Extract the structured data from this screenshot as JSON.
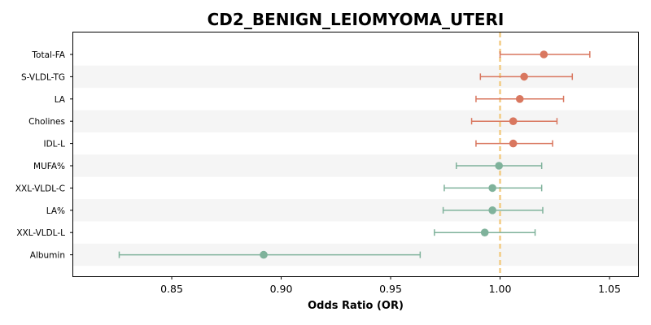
{
  "chart_data": {
    "type": "forest",
    "title": "CD2_BENIGN_LEIOMYOMA_UTERI",
    "xlabel": "Odds Ratio (OR)",
    "ylabel": "",
    "xlim": [
      0.805,
      1.063
    ],
    "xticks": [
      0.85,
      0.9,
      0.95,
      1.0,
      1.05
    ],
    "xtick_labels": [
      "0.85",
      "0.90",
      "0.95",
      "1.00",
      "1.05"
    ],
    "reference_line": 1.0,
    "grid": false,
    "row_banding": true,
    "colors": {
      "positive": "#d9775f",
      "negative": "#7fb29b",
      "reference": "#f2cc85",
      "band": "#f5f5f5"
    },
    "rows": [
      {
        "label": "Total-FA",
        "or": 1.02,
        "lo": 1.0,
        "hi": 1.041,
        "group": "positive"
      },
      {
        "label": "S-VLDL-TG",
        "or": 1.011,
        "lo": 0.991,
        "hi": 1.033,
        "group": "positive"
      },
      {
        "label": "LA",
        "or": 1.009,
        "lo": 0.989,
        "hi": 1.029,
        "group": "positive"
      },
      {
        "label": "Cholines",
        "or": 1.006,
        "lo": 0.987,
        "hi": 1.026,
        "group": "positive"
      },
      {
        "label": "IDL-L",
        "or": 1.006,
        "lo": 0.989,
        "hi": 1.024,
        "group": "positive"
      },
      {
        "label": "MUFA%",
        "or": 0.9995,
        "lo": 0.98,
        "hi": 1.019,
        "group": "negative"
      },
      {
        "label": "XXL-VLDL-C",
        "or": 0.9965,
        "lo": 0.9745,
        "hi": 1.019,
        "group": "negative"
      },
      {
        "label": "LA%",
        "or": 0.9965,
        "lo": 0.974,
        "hi": 1.0195,
        "group": "negative"
      },
      {
        "label": "XXL-VLDL-L",
        "or": 0.993,
        "lo": 0.97,
        "hi": 1.016,
        "group": "negative"
      },
      {
        "label": "Albumin",
        "or": 0.892,
        "lo": 0.826,
        "hi": 0.9635,
        "group": "negative"
      }
    ]
  }
}
